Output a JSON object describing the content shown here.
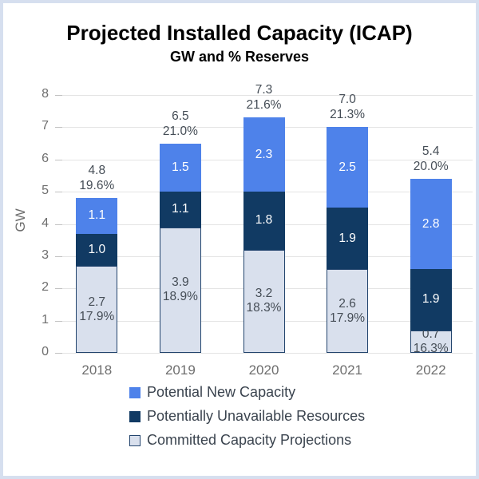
{
  "title": "Projected Installed Capacity (ICAP)",
  "subtitle": "GW and % Reserves",
  "colors": {
    "frame_border": "#D6DFEF",
    "potential_new": "#4E82EA",
    "unavailable": "#113A63",
    "committed_fill": "#D9E0ED",
    "committed_border": "#24456E",
    "gridline": "#E4E4E4",
    "axis_text": "#6E6E6E",
    "data_label_dark": "#454D56",
    "data_label_light": "#FFFFFF"
  },
  "chart_data": {
    "type": "bar",
    "stacked": true,
    "categories": [
      "2018",
      "2019",
      "2020",
      "2021",
      "2022"
    ],
    "series": [
      {
        "name": "Committed Capacity Projections",
        "values": [
          2.7,
          3.9,
          3.2,
          2.6,
          0.7
        ],
        "labels": [
          "2.7",
          "3.9",
          "3.2",
          "2.6",
          "0.7"
        ],
        "pct_labels": [
          "17.9%",
          "18.9%",
          "18.3%",
          "17.9%",
          "16.3%"
        ]
      },
      {
        "name": "Potentially Unavailable Resources",
        "values": [
          1.0,
          1.1,
          1.8,
          1.9,
          1.9
        ],
        "labels": [
          "1.0",
          "1.1",
          "1.8",
          "1.9",
          "1.9"
        ]
      },
      {
        "name": "Potential New Capacity",
        "values": [
          1.1,
          1.5,
          2.3,
          2.5,
          2.8
        ],
        "labels": [
          "1.1",
          "1.5",
          "2.3",
          "2.5",
          "2.8"
        ]
      }
    ],
    "totals": {
      "values": [
        4.8,
        6.5,
        7.3,
        7.0,
        5.4
      ],
      "labels": [
        "4.8",
        "6.5",
        "7.3",
        "7.0",
        "5.4"
      ],
      "pct_labels": [
        "19.6%",
        "21.0%",
        "21.6%",
        "21.3%",
        "20.0%"
      ]
    },
    "ylabel": "GW",
    "ylim": [
      0,
      8
    ],
    "yticks": [
      0,
      1,
      2,
      3,
      4,
      5,
      6,
      7,
      8
    ],
    "grid": true,
    "legend_position": "bottom-left"
  },
  "legend": {
    "items": [
      {
        "label": "Potential New Capacity",
        "color": "#4E82EA"
      },
      {
        "label": "Potentially Unavailable Resources",
        "color": "#113A63"
      },
      {
        "label": "Committed Capacity Projections",
        "color": "#D9E0ED",
        "border": "#24456E"
      }
    ]
  }
}
